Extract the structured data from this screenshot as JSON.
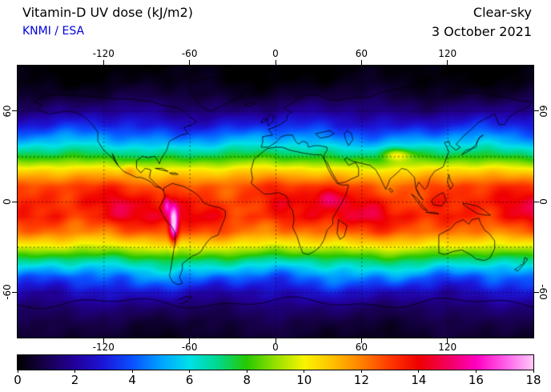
{
  "header": {
    "title": "Vitamin-D UV dose (kJ/m2)",
    "source": "KNMI / ESA",
    "condition": "Clear-sky",
    "date": "3 October 2021"
  },
  "axes": {
    "lon_ticks": [
      -120,
      -60,
      0,
      60,
      120
    ],
    "lat_ticks": [
      60,
      0,
      -60
    ],
    "lon_gridlines": [
      -120,
      -60,
      0,
      60,
      120
    ],
    "lat_gridlines": [
      60,
      30,
      0,
      -30,
      -60
    ]
  },
  "colorbar": {
    "min": 0,
    "max": 18,
    "tick_labels": [
      "0",
      "2",
      "4",
      "6",
      "8",
      "10",
      "12",
      "14",
      "16",
      "18"
    ],
    "stops": [
      {
        "value": 0,
        "color": "#000000"
      },
      {
        "value": 1,
        "color": "#18004e"
      },
      {
        "value": 2,
        "color": "#22009a"
      },
      {
        "value": 3,
        "color": "#1b16d8"
      },
      {
        "value": 4,
        "color": "#0a50ff"
      },
      {
        "value": 5,
        "color": "#00a2ff"
      },
      {
        "value": 6,
        "color": "#00e0e8"
      },
      {
        "value": 7,
        "color": "#00d88a"
      },
      {
        "value": 8,
        "color": "#28c800"
      },
      {
        "value": 9,
        "color": "#96e000"
      },
      {
        "value": 10,
        "color": "#f8f400"
      },
      {
        "value": 11,
        "color": "#ffc000"
      },
      {
        "value": 12,
        "color": "#ff8000"
      },
      {
        "value": 13,
        "color": "#ff3800"
      },
      {
        "value": 14,
        "color": "#f00000"
      },
      {
        "value": 15,
        "color": "#f2005c"
      },
      {
        "value": 16,
        "color": "#ff00c0"
      },
      {
        "value": 17,
        "color": "#ff5ce8"
      },
      {
        "value": 18,
        "color": "#ffc8f8"
      }
    ]
  },
  "chart_data": {
    "type": "heatmap",
    "title": "Vitamin-D UV dose (kJ/m2)",
    "subtitle": "Clear-sky",
    "date": "3 October 2021",
    "source": "KNMI / ESA",
    "units": "kJ/m2",
    "projection": "equirectangular",
    "lon_range": [
      -180,
      180
    ],
    "lat_range": [
      -90,
      90
    ],
    "value_range": [
      0,
      18
    ],
    "lat_profile": [
      {
        "lat": 90,
        "dose": 0.0
      },
      {
        "lat": 80,
        "dose": 0.2
      },
      {
        "lat": 70,
        "dose": 0.7
      },
      {
        "lat": 60,
        "dose": 1.7
      },
      {
        "lat": 50,
        "dose": 3.2
      },
      {
        "lat": 40,
        "dose": 5.2
      },
      {
        "lat": 30,
        "dose": 7.6
      },
      {
        "lat": 20,
        "dose": 10.6
      },
      {
        "lat": 10,
        "dose": 12.8
      },
      {
        "lat": 0,
        "dose": 13.6
      },
      {
        "lat": -10,
        "dose": 13.8
      },
      {
        "lat": -20,
        "dose": 12.4
      },
      {
        "lat": -30,
        "dose": 9.8
      },
      {
        "lat": -40,
        "dose": 6.8
      },
      {
        "lat": -50,
        "dose": 4.4
      },
      {
        "lat": -60,
        "dose": 2.6
      },
      {
        "lat": -70,
        "dose": 1.4
      },
      {
        "lat": -80,
        "dose": 0.8
      },
      {
        "lat": -90,
        "dose": 0.5
      }
    ],
    "hotspots": [
      {
        "name": "Andes / Altiplano",
        "lon": -71,
        "lat": -15,
        "sx": 3,
        "sy": 12,
        "amp": 5.5
      },
      {
        "name": "Northern Andes",
        "lon": -76,
        "lat": -2,
        "sx": 2.5,
        "sy": 6,
        "amp": 3.0
      },
      {
        "name": "East African highlands",
        "lon": 36,
        "lat": 3,
        "sx": 7,
        "sy": 6,
        "amp": 1.8
      },
      {
        "name": "Tibetan Plateau",
        "lon": 85,
        "lat": 31,
        "sx": 10,
        "sy": 4,
        "amp": 2.8
      },
      {
        "name": "Mexican Plateau",
        "lon": -102,
        "lat": 21,
        "sx": 5,
        "sy": 4,
        "amp": 1.2
      }
    ]
  }
}
